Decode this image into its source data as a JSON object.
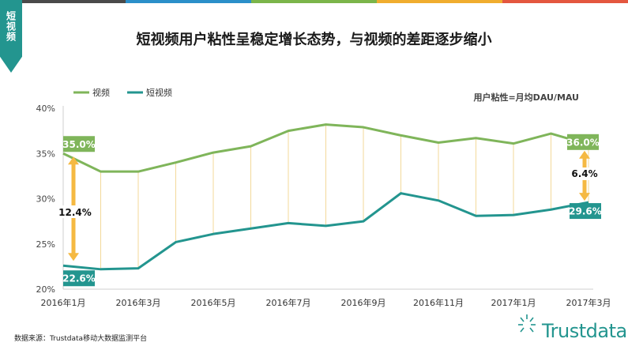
{
  "header": {
    "tag": "短视频",
    "title": "短视频用户粘性呈稳定增长态势，与视频的差距逐步缩小"
  },
  "note": "用户粘性=月均DAU/MAU",
  "source": "数据来源：Trustdata移动大数据监测平台",
  "logo": {
    "text": "Trustdata"
  },
  "colors": {
    "top_bar": [
      "#4a4a4a",
      "#2b8fc9",
      "#7bb54a",
      "#f0ad2f",
      "#e4573f"
    ],
    "video": "#7fb55a",
    "short_video": "#23958f",
    "arrow": "#f5b942",
    "grid": "#f0d080"
  },
  "chart_data": {
    "type": "line",
    "x": [
      "2016-01",
      "2016-02",
      "2016-03",
      "2016-04",
      "2016-05",
      "2016-06",
      "2016-07",
      "2016-08",
      "2016-09",
      "2016-10",
      "2016-11",
      "2016-12",
      "2017-01",
      "2017-02",
      "2017-03"
    ],
    "x_tick_labels": [
      "2016年1月",
      "2016年3月",
      "2016年5月",
      "2016年7月",
      "2016年9月",
      "2016年11月",
      "2017年1月",
      "2017年3月"
    ],
    "y_tick_labels": [
      "20%",
      "25%",
      "30%",
      "35%",
      "40%"
    ],
    "ylim": [
      20,
      40
    ],
    "series": [
      {
        "name": "视频",
        "values": [
          35.0,
          33.0,
          33.0,
          34.0,
          35.1,
          35.8,
          37.5,
          38.2,
          37.9,
          37.0,
          36.2,
          36.7,
          36.1,
          37.2,
          36.0
        ]
      },
      {
        "name": "短视频",
        "values": [
          22.6,
          22.2,
          22.3,
          25.2,
          26.1,
          26.7,
          27.3,
          27.0,
          27.5,
          30.6,
          29.8,
          28.1,
          28.2,
          28.8,
          29.6
        ]
      }
    ],
    "annotations": {
      "start_video": "35.0%",
      "start_short": "22.6%",
      "start_gap": "12.4%",
      "end_video": "36.0%",
      "end_short": "29.6%",
      "end_gap": "6.4%"
    },
    "legend_position": "top-left",
    "grid": "vertical"
  }
}
